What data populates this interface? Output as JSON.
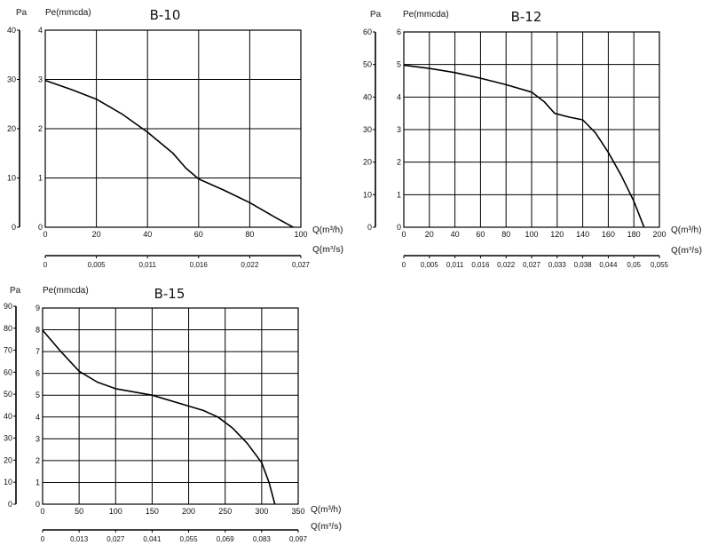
{
  "chart_data": [
    {
      "type": "line",
      "title": "B-10",
      "ylabel": "Pe(mmcda)",
      "ylabel_outer": "Pa",
      "xlabel": "Q(m³/h)",
      "xlabel_outer": "Q(m³/s)",
      "xlim": [
        0,
        100
      ],
      "ylim": [
        0,
        4
      ],
      "ylim_outer": [
        0,
        40
      ],
      "xticks": [
        "0",
        "20",
        "40",
        "60",
        "80",
        "100"
      ],
      "yticks": [
        "0",
        "1",
        "2",
        "3",
        "4"
      ],
      "yticks_outer": [
        "0",
        "10",
        "20",
        "30",
        "40"
      ],
      "xticks_outer": [
        "0",
        "0,005",
        "0,011",
        "0,016",
        "0,022",
        "0,027"
      ],
      "grid": true,
      "series": [
        {
          "x": [
            0,
            10,
            20,
            30,
            40,
            50,
            55,
            60,
            70,
            80,
            90,
            97
          ],
          "y": [
            2.98,
            2.8,
            2.6,
            2.3,
            1.93,
            1.5,
            1.2,
            0.98,
            0.75,
            0.5,
            0.2,
            0.0
          ]
        }
      ]
    },
    {
      "type": "line",
      "title": "B-12",
      "ylabel": "Pe(mmcda)",
      "ylabel_outer": "Pa",
      "xlabel": "Q(m³/h)",
      "xlabel_outer": "Q(m³/s)",
      "xlim": [
        0,
        200
      ],
      "ylim": [
        0,
        6
      ],
      "ylim_outer": [
        0,
        60
      ],
      "xticks": [
        "0",
        "20",
        "40",
        "60",
        "80",
        "100",
        "120",
        "140",
        "160",
        "180",
        "200"
      ],
      "yticks": [
        "0",
        "1",
        "2",
        "3",
        "4",
        "5",
        "6"
      ],
      "yticks_outer": [
        "0",
        "10",
        "20",
        "30",
        "40",
        "50",
        "60"
      ],
      "xticks_outer": [
        "0",
        "0,005",
        "0,011",
        "0,016",
        "0,022",
        "0,027",
        "0,033",
        "0,038",
        "0,044",
        "0,05",
        "0,055"
      ],
      "grid": true,
      "series": [
        {
          "x": [
            0,
            20,
            40,
            60,
            80,
            100,
            110,
            118,
            130,
            140,
            150,
            160,
            170,
            180,
            188
          ],
          "y": [
            4.98,
            4.88,
            4.75,
            4.58,
            4.38,
            4.15,
            3.85,
            3.5,
            3.38,
            3.3,
            2.9,
            2.3,
            1.6,
            0.8,
            0.0
          ]
        }
      ]
    },
    {
      "type": "line",
      "title": "B-15",
      "ylabel": "Pe(mmcda)",
      "ylabel_outer": "Pa",
      "xlabel": "Q(m³/h)",
      "xlabel_outer": "Q(m³/s)",
      "xlim": [
        0,
        350
      ],
      "ylim": [
        0,
        9
      ],
      "ylim_outer": [
        0,
        90
      ],
      "xticks": [
        "0",
        "50",
        "100",
        "150",
        "200",
        "250",
        "300",
        "350"
      ],
      "yticks": [
        "0",
        "1",
        "2",
        "3",
        "4",
        "5",
        "6",
        "7",
        "8",
        "9"
      ],
      "yticks_outer": [
        "0",
        "10",
        "20",
        "30",
        "40",
        "50",
        "60",
        "70",
        "80",
        "90"
      ],
      "xticks_outer": [
        "0",
        "0,013",
        "0,027",
        "0,041",
        "0,055",
        "0,069",
        "0,083",
        "0,097"
      ],
      "grid": true,
      "series": [
        {
          "x": [
            0,
            25,
            50,
            75,
            100,
            150,
            200,
            220,
            240,
            260,
            280,
            300,
            310,
            318
          ],
          "y": [
            7.98,
            7.0,
            6.1,
            5.6,
            5.3,
            5.0,
            4.5,
            4.3,
            4.0,
            3.5,
            2.8,
            1.9,
            1.0,
            0.0
          ]
        }
      ]
    }
  ]
}
